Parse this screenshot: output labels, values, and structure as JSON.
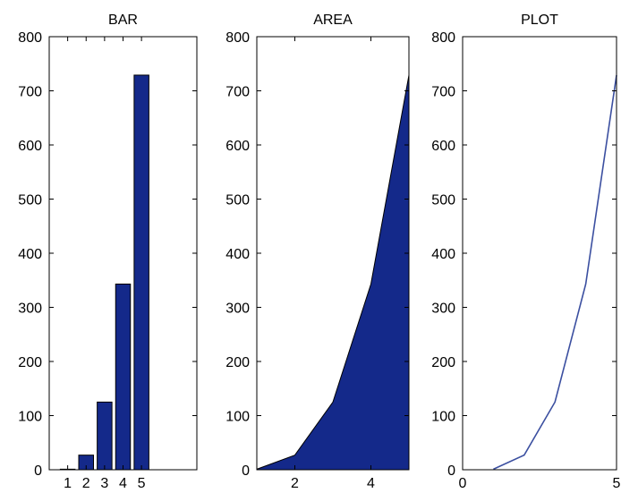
{
  "chart_data": [
    {
      "type": "bar",
      "title": "BAR",
      "xlabel": "",
      "ylabel": "",
      "categories": [
        "1",
        "2",
        "3",
        "4",
        "5"
      ],
      "values": [
        1,
        27,
        125,
        343,
        729
      ],
      "xlim": [
        0,
        8
      ],
      "ylim": [
        0,
        800
      ],
      "xticks": [
        1,
        2,
        3,
        4,
        5
      ],
      "yticks": [
        0,
        100,
        200,
        300,
        400,
        500,
        600,
        700,
        800
      ],
      "grid": false,
      "color": "#14298a"
    },
    {
      "type": "area",
      "title": "AREA",
      "xlabel": "",
      "ylabel": "",
      "x": [
        1,
        2,
        3,
        4,
        5
      ],
      "values": [
        1,
        27,
        125,
        343,
        729
      ],
      "xlim": [
        1,
        5
      ],
      "ylim": [
        0,
        800
      ],
      "xticks": [
        2,
        4
      ],
      "yticks": [
        0,
        100,
        200,
        300,
        400,
        500,
        600,
        700,
        800
      ],
      "grid": false,
      "color": "#14298a"
    },
    {
      "type": "line",
      "title": "PLOT",
      "xlabel": "",
      "ylabel": "",
      "x": [
        1,
        2,
        3,
        4,
        5
      ],
      "values": [
        1,
        27,
        125,
        343,
        729
      ],
      "xlim": [
        0,
        5
      ],
      "ylim": [
        0,
        800
      ],
      "xticks": [
        0,
        5
      ],
      "yticks": [
        0,
        100,
        200,
        300,
        400,
        500,
        600,
        700,
        800
      ],
      "grid": false,
      "color": "#3b4fa0"
    }
  ]
}
